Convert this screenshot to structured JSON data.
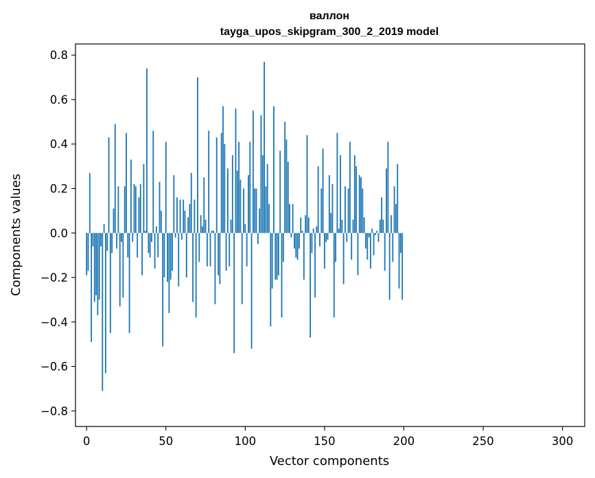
{
  "chart_data": {
    "type": "bar",
    "title": "валлон",
    "subtitle": "tayga_upos_skipgram_300_2_2019 model",
    "xlabel": "Vector components",
    "ylabel": "Components values",
    "xlim": [
      -7,
      314
    ],
    "ylim": [
      -0.87,
      0.85
    ],
    "xticks": [
      0,
      50,
      100,
      150,
      200,
      250,
      300
    ],
    "yticks": [
      -0.8,
      -0.6,
      -0.4,
      -0.2,
      0.0,
      0.2,
      0.4,
      0.6,
      0.8
    ],
    "ytick_labels": [
      "−0.8",
      "−0.6",
      "−0.4",
      "−0.2",
      "0.0",
      "0.2",
      "0.4",
      "0.6",
      "0.8"
    ],
    "xtick_labels": [
      "0",
      "50",
      "100",
      "150",
      "200",
      "250",
      "300"
    ],
    "bar_color": "#1f77b4",
    "grid": false,
    "x_start": 0,
    "values": [
      -0.19,
      -0.17,
      0.27,
      -0.49,
      -0.06,
      -0.31,
      -0.28,
      -0.37,
      -0.3,
      -0.06,
      -0.71,
      0.04,
      -0.63,
      -0.08,
      0.43,
      -0.45,
      -0.09,
      0.11,
      0.49,
      -0.07,
      0.21,
      -0.33,
      -0.04,
      -0.29,
      0.21,
      0.45,
      -0.11,
      -0.45,
      0.33,
      -0.04,
      0.22,
      0.21,
      -0.11,
      0.16,
      0.22,
      -0.19,
      0.31,
      0.01,
      0.74,
      -0.09,
      -0.11,
      -0.04,
      0.46,
      -0.16,
      0.03,
      -0.11,
      0.23,
      0.1,
      -0.51,
      -0.2,
      0.41,
      -0.22,
      -0.36,
      -0.21,
      -0.17,
      0.26,
      -0.02,
      0.16,
      -0.24,
      0.15,
      -0.03,
      0.15,
      0.1,
      -0.2,
      0.07,
      0.13,
      0.27,
      -0.31,
      0.15,
      -0.38,
      0.7,
      -0.13,
      0.08,
      0.03,
      0.25,
      0.06,
      -0.15,
      0.46,
      -0.15,
      0.01,
      0.01,
      -0.32,
      0.43,
      -0.19,
      -0.23,
      0.45,
      0.57,
      0.4,
      -0.17,
      0.29,
      -0.15,
      0.06,
      0.35,
      -0.54,
      0.56,
      0.28,
      0.41,
      0.24,
      -0.32,
      0.2,
      0.04,
      -0.15,
      0.26,
      0.41,
      -0.52,
      0.55,
      0.2,
      0.2,
      -0.05,
      0.11,
      0.53,
      0.35,
      0.77,
      0.21,
      0.31,
      0.13,
      -0.42,
      -0.25,
      0.57,
      -0.21,
      -0.21,
      -0.19,
      0.37,
      -0.38,
      -0.13,
      0.5,
      0.42,
      0.32,
      0.13,
      -0.02,
      0.13,
      -0.07,
      -0.11,
      -0.12,
      -0.07,
      0.07,
      0.01,
      -0.21,
      0.08,
      0.44,
      0.07,
      -0.47,
      -0.09,
      0.02,
      -0.29,
      0.03,
      0.3,
      -0.06,
      0.2,
      0.38,
      -0.16,
      -0.04,
      -0.03,
      0.26,
      0.09,
      0.22,
      -0.38,
      -0.13,
      0.45,
      0.02,
      0.35,
      0.06,
      -0.23,
      0.21,
      -0.04,
      0.2,
      0.41,
      -0.12,
      0.06,
      0.35,
      0.3,
      -0.19,
      0.26,
      0.25,
      0.2,
      0.07,
      -0.07,
      -0.12,
      -0.02,
      -0.16,
      0.02,
      -0.1,
      -0.01,
      0.01,
      -0.04,
      0.06,
      0.16,
      0.06,
      -0.17,
      0.29,
      0.41,
      -0.3,
      0.08,
      -0.13,
      0.21,
      0.13,
      0.31,
      -0.25,
      -0.09,
      -0.3
    ]
  }
}
